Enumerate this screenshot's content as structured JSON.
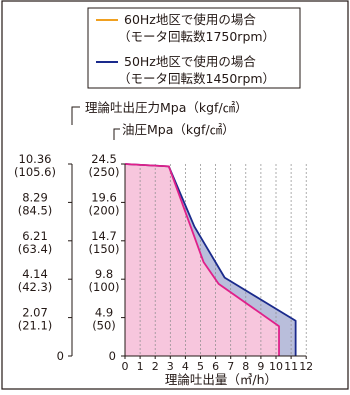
{
  "chart_data": {
    "type": "area",
    "title": "",
    "xlabel": "理論吐出量（㎥/h）",
    "ylabel_outer": "理論吐出圧力Mpa（kgf/㎠）",
    "ylabel_inner": "油圧Mpa（kgf/㎠）",
    "xlim": [
      0,
      12
    ],
    "x_ticks": [
      "0",
      "1",
      "2",
      "3",
      "4",
      "5",
      "6",
      "7",
      "8",
      "9",
      "10",
      "11",
      "12"
    ],
    "ylim_oil_mpa": [
      0,
      24.5
    ],
    "y_ticks_outer": [
      {
        "mpa": "10.36",
        "kgf": "(105.6)"
      },
      {
        "mpa": "8.29",
        "kgf": "(84.5)"
      },
      {
        "mpa": "6.21",
        "kgf": "(63.4)"
      },
      {
        "mpa": "4.14",
        "kgf": "(42.3)"
      },
      {
        "mpa": "2.07",
        "kgf": "(21.1)"
      },
      {
        "mpa": "0",
        "kgf": ""
      }
    ],
    "y_ticks_inner": [
      {
        "mpa": "24.5",
        "kgf": "(250)"
      },
      {
        "mpa": "19.6",
        "kgf": "(200)"
      },
      {
        "mpa": "14.7",
        "kgf": "(150)"
      },
      {
        "mpa": "9.8",
        "kgf": "(100)"
      },
      {
        "mpa": "4.9",
        "kgf": "(50)"
      },
      {
        "mpa": "0",
        "kgf": ""
      }
    ],
    "legend_position": "top",
    "series": [
      {
        "name": "60Hz地区で使用の場合",
        "subtitle": "（モータ回転数1750rpm）",
        "color": "#f0a020",
        "line_color": "#e0208a",
        "fill": "#f7c6dd",
        "x": [
          0,
          2.9,
          5.2,
          6.2,
          10.2,
          10.2
        ],
        "y": [
          24.5,
          24.2,
          12.0,
          9.2,
          3.8,
          0
        ]
      },
      {
        "name": "50Hz地区で使用の場合",
        "subtitle": "（モータ回転数1450rpm）",
        "color": "#1a2a8c",
        "line_color": "#1a2a8c",
        "fill": "#b9bedb",
        "x": [
          0,
          2.9,
          4.6,
          6.6,
          11.3,
          11.3
        ],
        "y": [
          24.5,
          24.2,
          16.5,
          10.0,
          4.5,
          0
        ]
      }
    ]
  }
}
